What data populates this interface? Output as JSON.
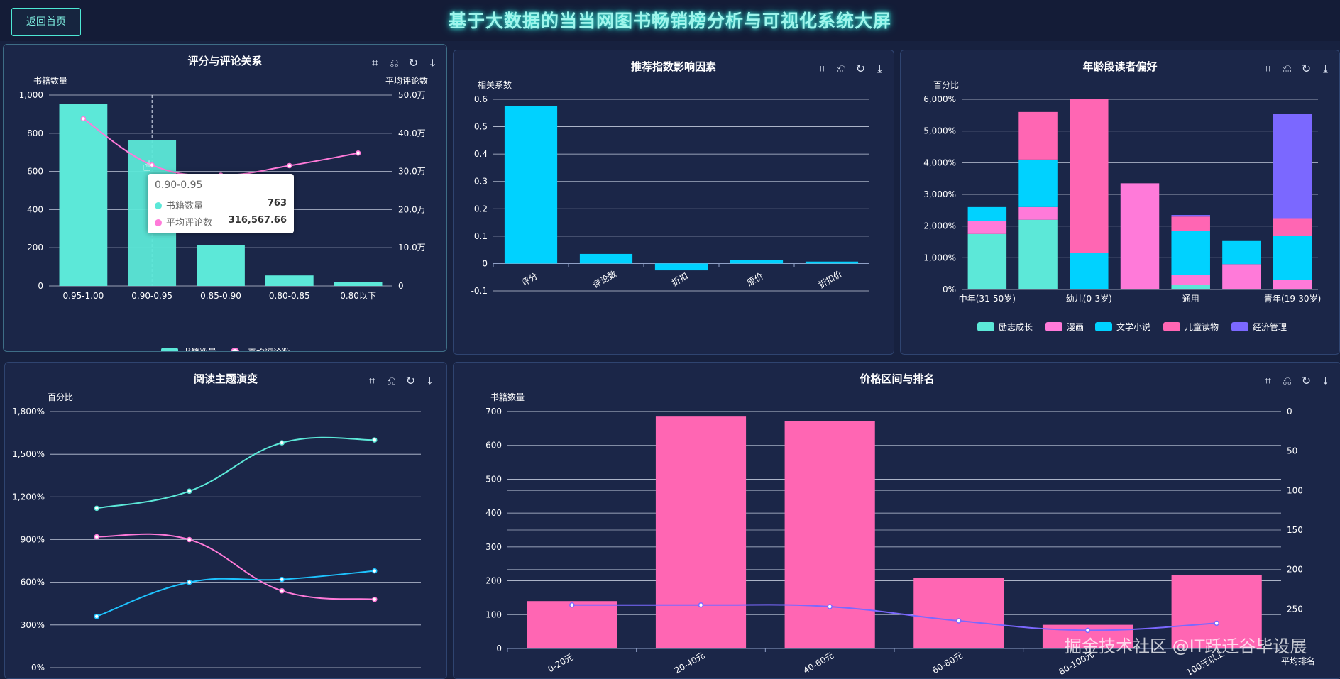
{
  "header": {
    "back_label": "返回首页",
    "title": "基于大数据的当当网图书畅销榜分析与可视化系统大屏"
  },
  "toolbox_icons": [
    "zoom-icon",
    "zoom-reset-icon",
    "restore-icon",
    "download-icon"
  ],
  "toolbox_glyphs": [
    "⌗",
    "⎌",
    "↻",
    "⤓"
  ],
  "tooltip": {
    "title": "0.90-0.95",
    "rows": [
      {
        "label": "书籍数量",
        "value": "763",
        "color": "#5ce8d8"
      },
      {
        "label": "平均评论数",
        "value": "316,567.66",
        "color": "#ff7ad9"
      }
    ]
  },
  "watermark": "掘金技术社区 @IT跃迁谷毕设展",
  "chart_data": [
    {
      "id": "rating",
      "type": "bar",
      "title": "评分与评论关系",
      "categories": [
        "0.95-1.00",
        "0.90-0.95",
        "0.85-0.90",
        "0.80-0.85",
        "0.80以下"
      ],
      "series": [
        {
          "name": "书籍数量",
          "type": "bar",
          "values": [
            955,
            763,
            215,
            55,
            22
          ],
          "color": "#5ce8d8"
        },
        {
          "name": "平均评论数",
          "type": "line",
          "axis": "right",
          "values": [
            438000,
            316568,
            290000,
            315000,
            348000
          ],
          "color": "#ff7ad9"
        }
      ],
      "ylabel": "书籍数量",
      "ylabel_right": "平均评论数",
      "ylim": [
        0,
        1000
      ],
      "yticks": [
        0,
        200,
        400,
        600,
        800,
        1000
      ],
      "ytick_labels": [
        "0",
        "200",
        "400",
        "600",
        "800",
        "1,000"
      ],
      "ylim_right": [
        0,
        500000
      ],
      "ytick_labels_right": [
        "0",
        "10.0万",
        "20.0万",
        "30.0万",
        "40.0万",
        "50.0万"
      ],
      "legend": "bottom",
      "grid": true
    },
    {
      "id": "factors",
      "type": "bar",
      "title": "推荐指数影响因素",
      "categories": [
        "评分",
        "评论数",
        "折扣",
        "原价",
        "折扣价"
      ],
      "values": [
        0.575,
        0.035,
        -0.025,
        0.013,
        0.007
      ],
      "color": "#00d2ff",
      "ylabel": "相关系数",
      "ylim": [
        -0.1,
        0.6
      ],
      "yticks": [
        -0.1,
        0,
        0.1,
        0.2,
        0.3,
        0.4,
        0.5,
        0.6
      ],
      "ytick_labels": [
        "-0.1",
        "0",
        "0.1",
        "0.2",
        "0.3",
        "0.4",
        "0.5",
        "0.6"
      ],
      "grid": true
    },
    {
      "id": "age",
      "type": "bar",
      "stacked": true,
      "title": "年龄段读者偏好",
      "categories": [
        "中年(31-50岁)",
        "",
        "幼儿(0-3岁)",
        "",
        "通用",
        "",
        "青年(19-30岁)"
      ],
      "series": [
        {
          "name": "励志成长",
          "color": "#5ce8d8",
          "values": [
            1750,
            2200,
            0,
            0,
            150,
            0,
            0
          ]
        },
        {
          "name": "漫画",
          "color": "#ff7ad9",
          "values": [
            400,
            400,
            0,
            3350,
            300,
            800,
            300
          ]
        },
        {
          "name": "文学小说",
          "color": "#00d2ff",
          "values": [
            450,
            1500,
            1150,
            0,
            1400,
            750,
            1400
          ]
        },
        {
          "name": "儿童读物",
          "color": "#ff66b3",
          "values": [
            0,
            1500,
            4850,
            0,
            450,
            0,
            550
          ]
        },
        {
          "name": "经济管理",
          "color": "#7b68ff",
          "values": [
            0,
            0,
            0,
            0,
            50,
            0,
            3300
          ]
        }
      ],
      "ylabel": "百分比",
      "ylim": [
        0,
        6000
      ],
      "yticks": [
        0,
        1000,
        2000,
        3000,
        4000,
        5000,
        6000
      ],
      "ytick_labels": [
        "0%",
        "1,000%",
        "2,000%",
        "3,000%",
        "4,000%",
        "5,000%",
        "6,000%"
      ],
      "legend": "bottom",
      "grid": true
    },
    {
      "id": "theme",
      "type": "line",
      "smooth": true,
      "title": "阅读主题演变",
      "x": [
        0,
        1,
        2,
        3
      ],
      "series": [
        {
          "values": [
            1120,
            1240,
            1580,
            1600
          ],
          "color": "#5ce8d8"
        },
        {
          "values": [
            920,
            900,
            540,
            480
          ],
          "color": "#ff7ad9"
        },
        {
          "values": [
            360,
            600,
            620,
            680
          ],
          "color": "#1ec3ff"
        }
      ],
      "ylabel": "百分比",
      "ylim": [
        0,
        1800
      ],
      "yticks": [
        0,
        300,
        600,
        900,
        1200,
        1500,
        1800
      ],
      "ytick_labels": [
        "0%",
        "300%",
        "600%",
        "900%",
        "1,200%",
        "1,500%",
        "1,800%"
      ],
      "grid": true
    },
    {
      "id": "price",
      "type": "bar",
      "title": "价格区间与排名",
      "categories": [
        "0-20元",
        "20-40元",
        "40-60元",
        "60-80元",
        "80-100元",
        "100元以上"
      ],
      "series": [
        {
          "name": "书籍数量",
          "type": "bar",
          "values": [
            140,
            685,
            672,
            208,
            70,
            218
          ],
          "color": "#ff66b3"
        },
        {
          "name": "平均排名",
          "type": "line",
          "axis": "right",
          "inverse": true,
          "values": [
            245,
            245,
            247,
            265,
            277,
            268
          ],
          "color": "#7b68ff"
        }
      ],
      "ylabel": "书籍数量",
      "ylabel_right": "平均排名",
      "ylim": [
        0,
        700
      ],
      "yticks": [
        0,
        100,
        200,
        300,
        400,
        500,
        600,
        700
      ],
      "ytick_labels": [
        "0",
        "100",
        "200",
        "300",
        "400",
        "500",
        "600",
        "700"
      ],
      "ylim_right": [
        0,
        300
      ],
      "ytick_labels_right": [
        "0",
        "50",
        "100",
        "150",
        "200",
        "250"
      ],
      "grid": true
    }
  ]
}
